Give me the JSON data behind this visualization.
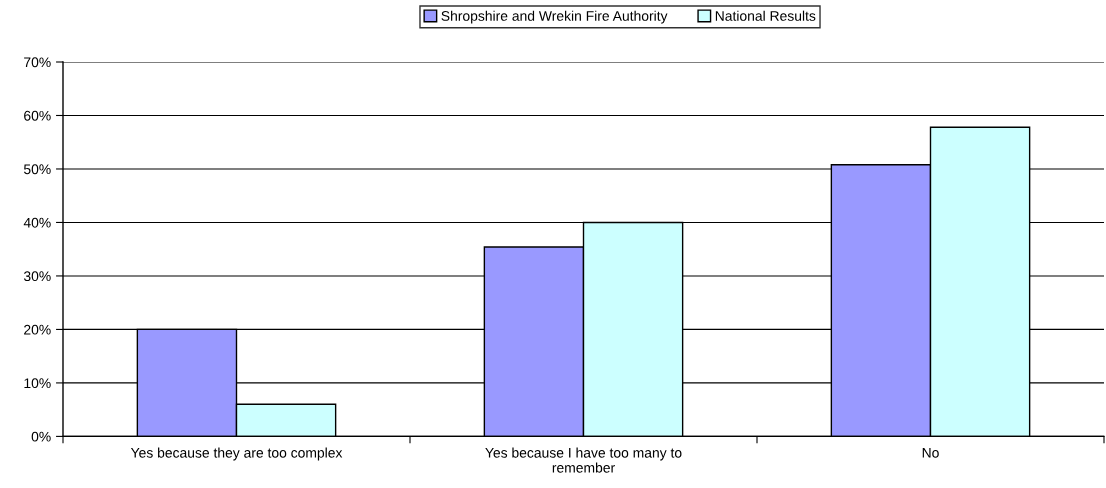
{
  "chart_data": {
    "type": "bar",
    "categories": [
      "Yes because they are too complex",
      "Yes because I have too many to\nremember",
      "No"
    ],
    "series": [
      {
        "name": "Shropshire and Wrekin Fire Authority",
        "color": "#9999ff",
        "values": [
          20,
          35.4,
          50.8
        ]
      },
      {
        "name": "National Results",
        "color": "#ccffff",
        "values": [
          6,
          40,
          57.8
        ]
      }
    ],
    "ylim": [
      0,
      70
    ],
    "yticks": [
      {
        "value": 0,
        "label": "0%"
      },
      {
        "value": 10,
        "label": "10%"
      },
      {
        "value": 20,
        "label": "20%"
      },
      {
        "value": 30,
        "label": "30%"
      },
      {
        "value": 40,
        "label": "40%"
      },
      {
        "value": 50,
        "label": "50%"
      },
      {
        "value": 60,
        "label": "60%"
      },
      {
        "value": 70,
        "label": "70%"
      }
    ],
    "grid": "y",
    "legend": "top"
  }
}
